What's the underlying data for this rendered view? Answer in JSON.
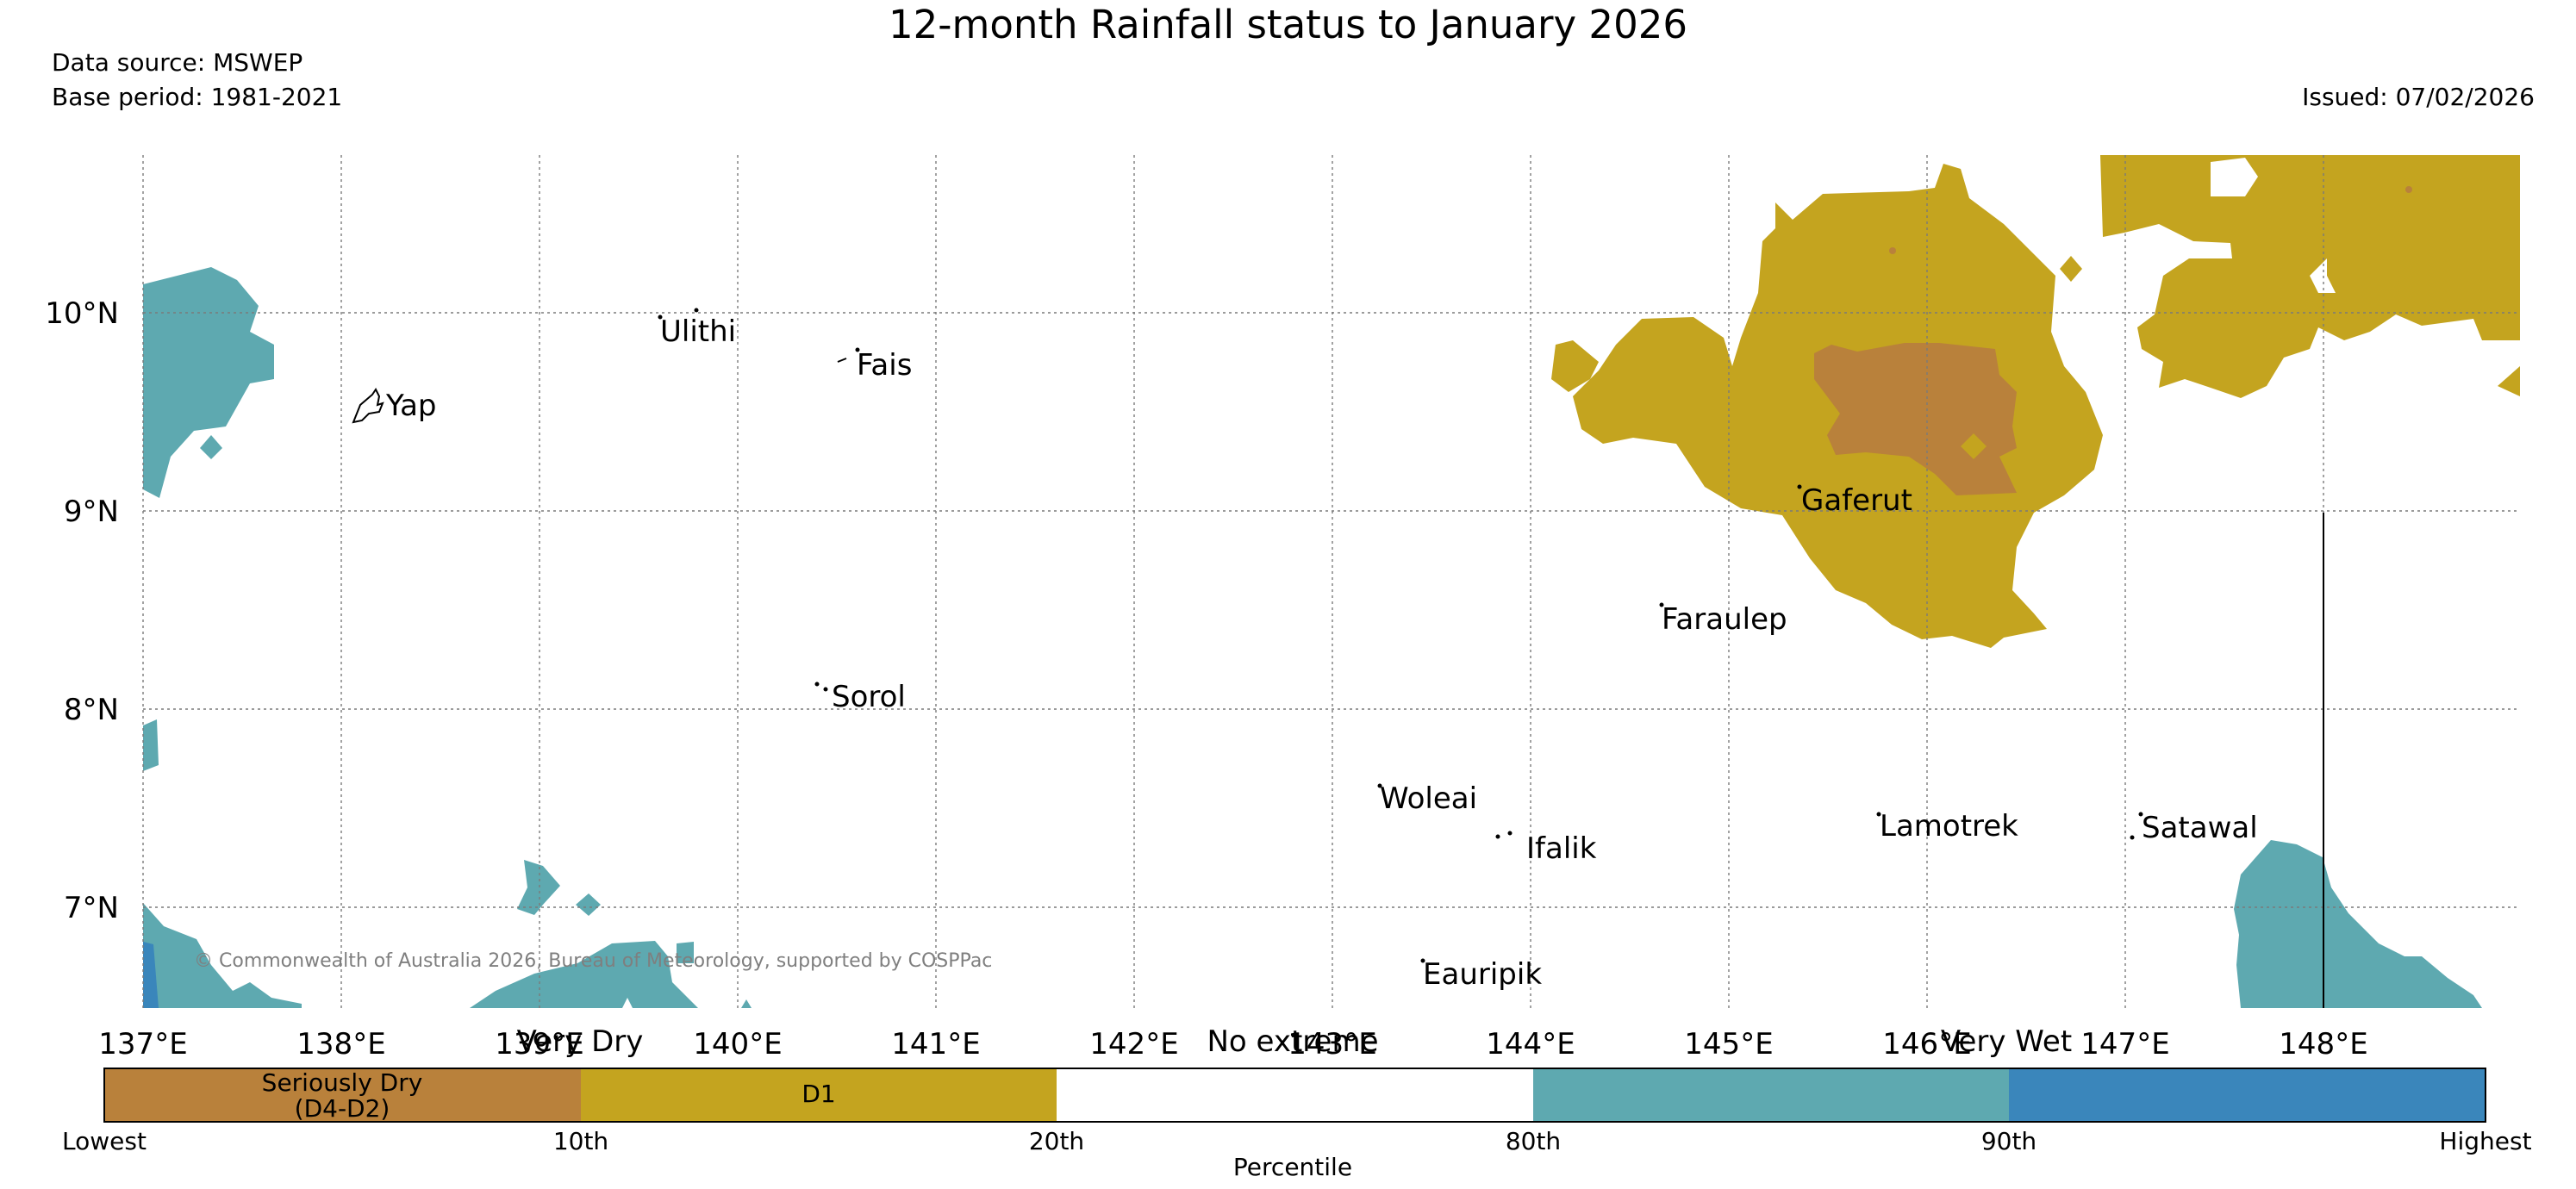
{
  "header": {
    "title": "12-month Rainfall status to January 2026",
    "data_source": "Data source: MSWEP",
    "base_period": "Base period: 1981-2021",
    "issued": "Issued: 07/02/2026"
  },
  "map": {
    "lon_range": [
      136.975,
      148.975
    ],
    "lat_range": [
      6.5,
      10.8
    ],
    "lon_ticks": [
      "137°E",
      "138°E",
      "139°E",
      "140°E",
      "141°E",
      "142°E",
      "143°E",
      "144°E",
      "145°E",
      "146°E",
      "147°E",
      "148°E"
    ],
    "lat_ticks": [
      "10°N",
      "9°N",
      "8°N",
      "7°N"
    ],
    "grid": "dotted",
    "places": [
      "Ulithi",
      "Fais",
      "Yap",
      "Gaferut",
      "Faraulep",
      "Sorol",
      "Woleai",
      "Ifalik",
      "Lamotrek",
      "Satawal",
      "Eauripik"
    ],
    "copyright": "© Commonwealth of Australia 2026, Bureau of Meteorology, supported by COSPPac"
  },
  "legend": {
    "categories": [
      "Very Dry",
      "No extreme",
      "Very Wet"
    ],
    "bins": [
      {
        "label": "Seriously Dry",
        "label2": "(D4-D2)",
        "color": "#b9813b"
      },
      {
        "label": "D1",
        "label2": "",
        "color": "#c4a41f"
      },
      {
        "label": "",
        "label2": "",
        "color": "#ffffff"
      },
      {
        "label": "",
        "label2": "",
        "color": "#5ea9b0"
      },
      {
        "label": "",
        "label2": "",
        "color": "#3a86bb"
      }
    ],
    "thresholds": [
      "Lowest",
      "10th",
      "20th",
      "80th",
      "90th",
      "Highest"
    ],
    "axis_label": "Percentile"
  }
}
